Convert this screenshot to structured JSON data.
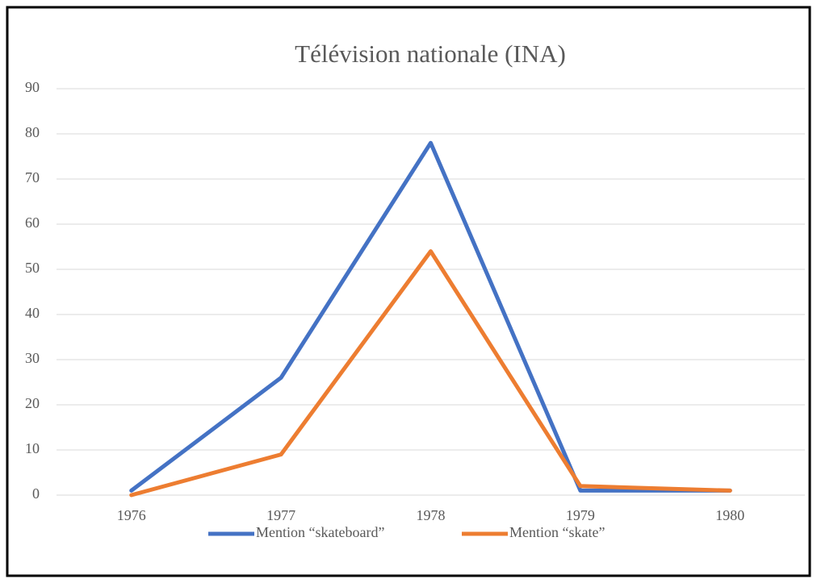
{
  "chart_data": {
    "type": "line",
    "title": "Télévision nationale (INA)",
    "categories": [
      "1976",
      "1977",
      "1978",
      "1979",
      "1980"
    ],
    "series": [
      {
        "name": "Mention “skateboard”",
        "color": "#4472c4",
        "values": [
          1,
          26,
          78,
          1,
          1
        ]
      },
      {
        "name": "Mention “skate”",
        "color": "#ed7d31",
        "values": [
          0,
          9,
          54,
          2,
          1
        ]
      }
    ],
    "ylim": [
      0,
      90
    ],
    "yticks": [
      0,
      10,
      20,
      30,
      40,
      50,
      60,
      70,
      80,
      90
    ],
    "grid": true,
    "legend": "bottom"
  }
}
